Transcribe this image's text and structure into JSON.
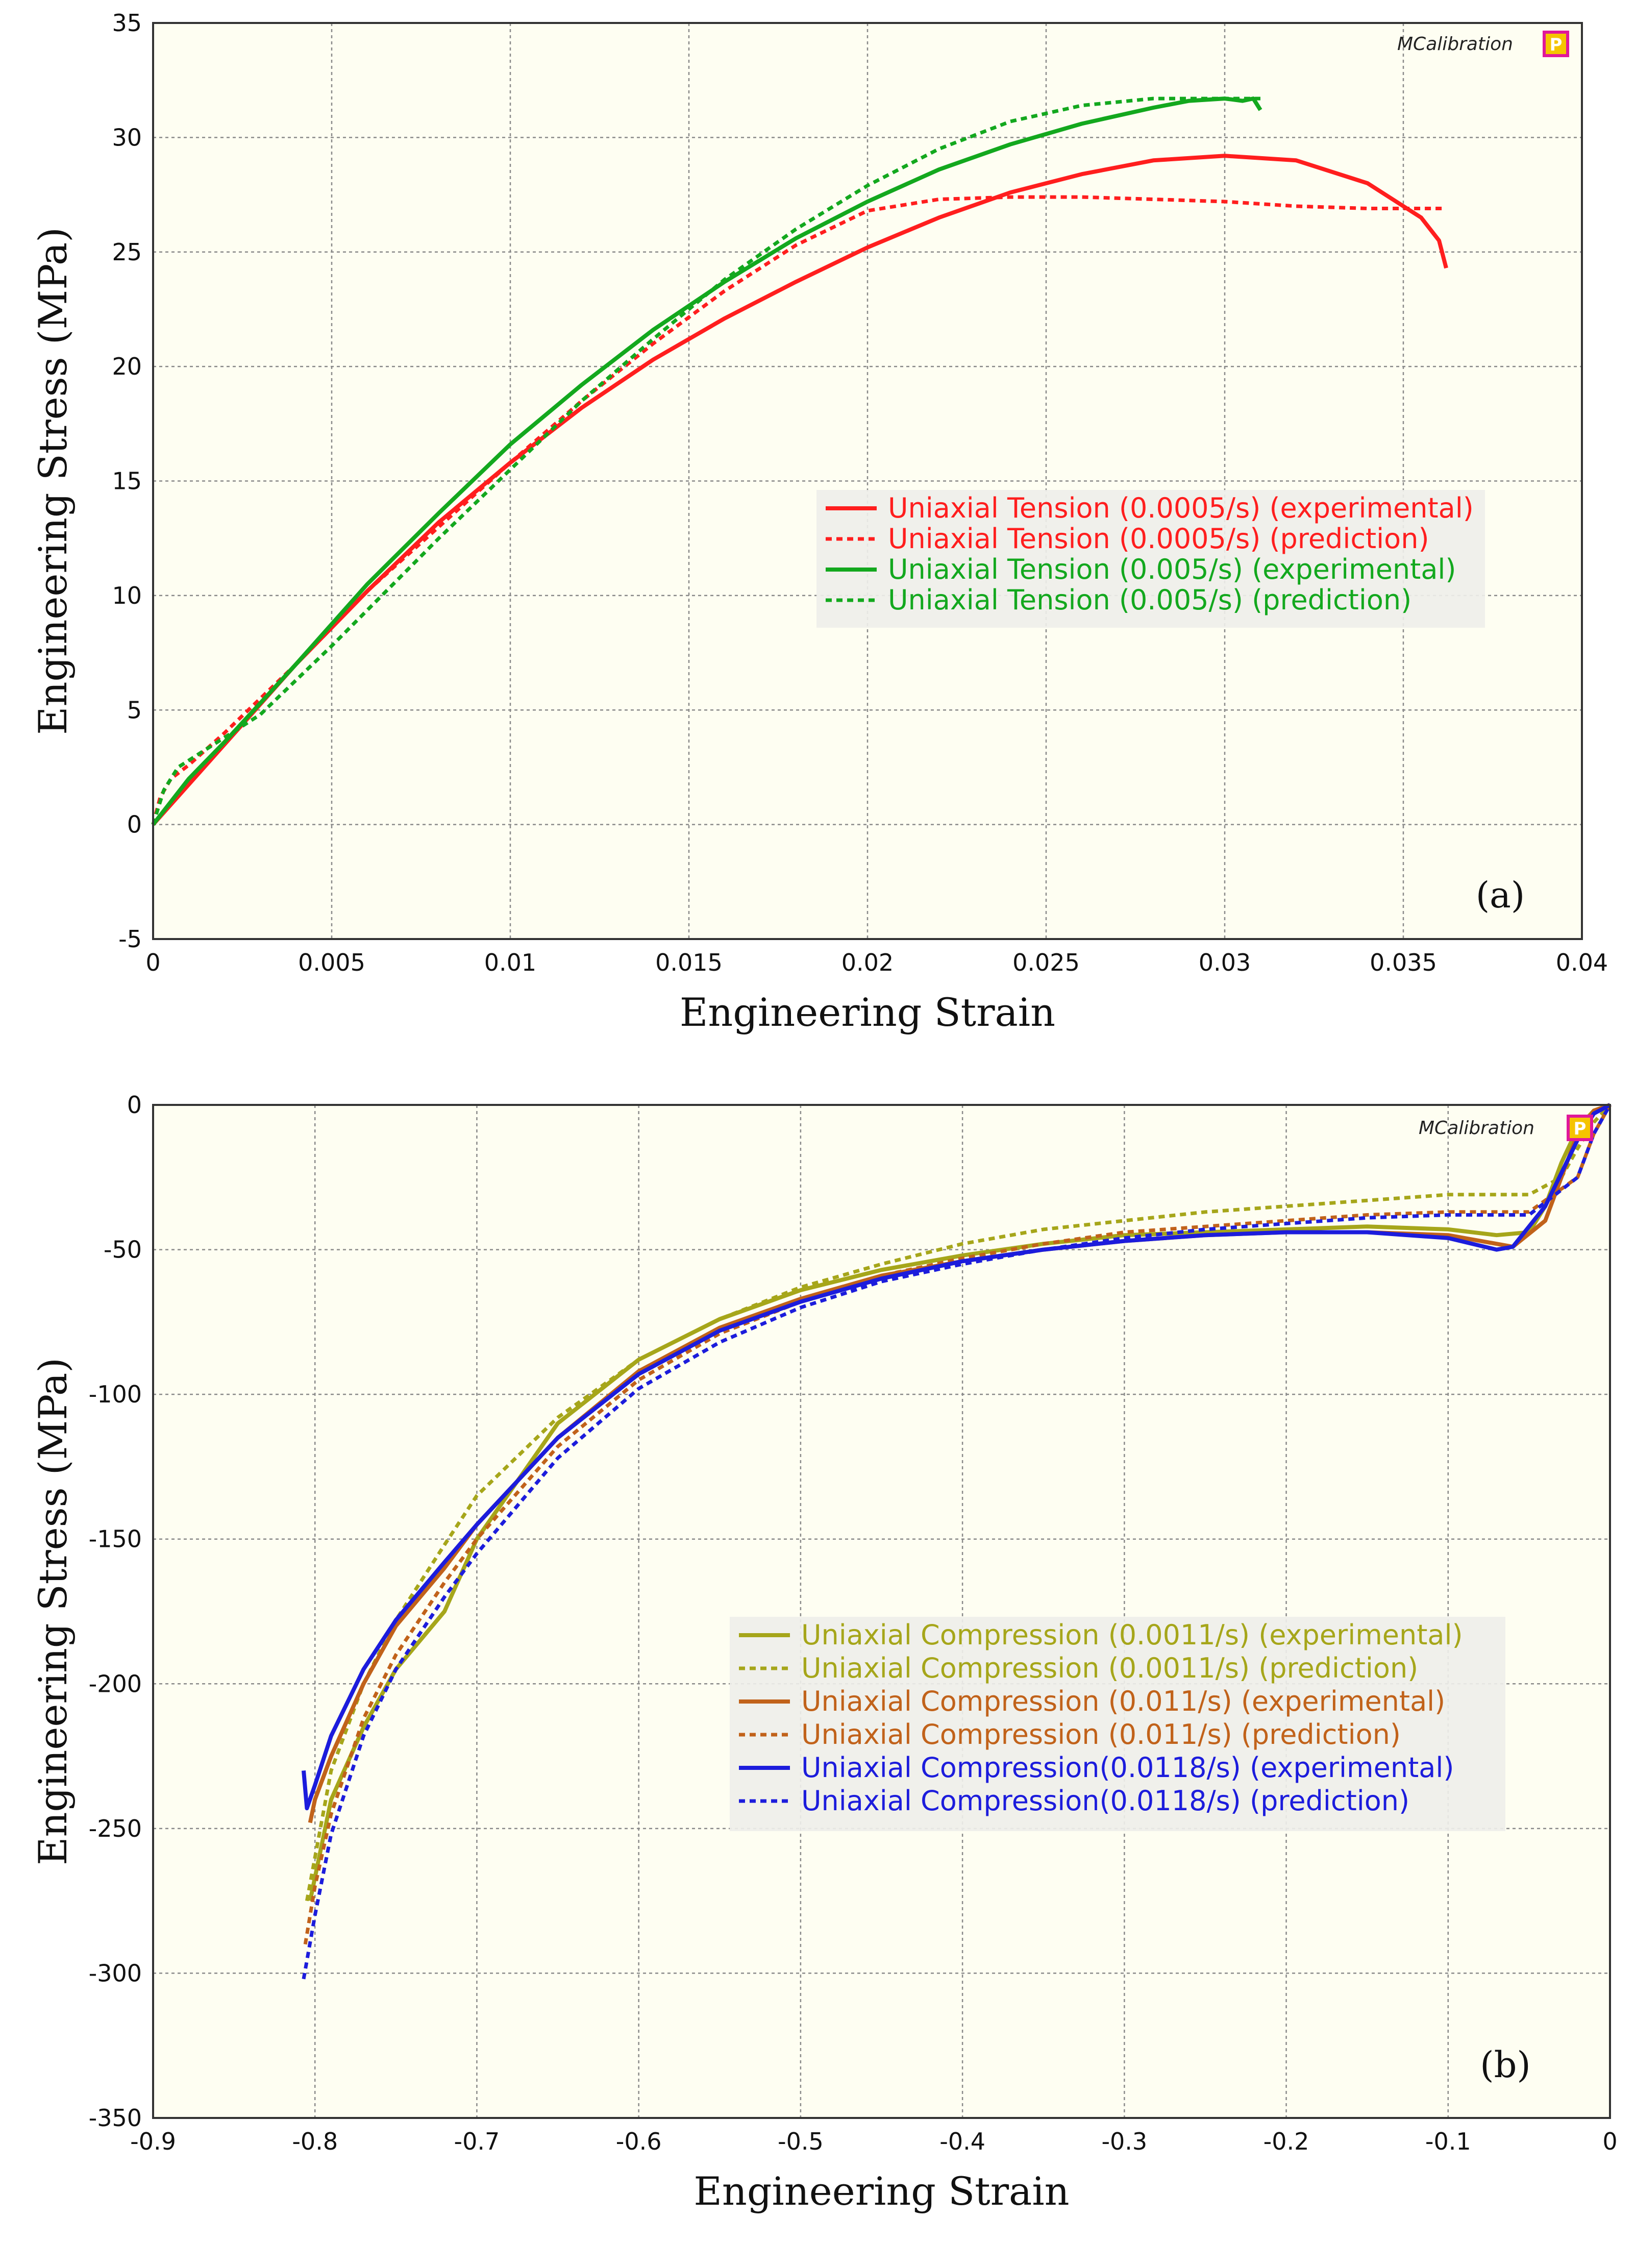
{
  "chart_data": [
    {
      "type": "line",
      "panel_label": "(a)",
      "xlabel": "Engineering Strain",
      "ylabel": "Engineering Stress (MPa)",
      "xlim": [
        0,
        0.04
      ],
      "ylim": [
        -5,
        35
      ],
      "xticks": [
        0,
        0.005,
        0.01,
        0.015,
        0.02,
        0.025,
        0.03,
        0.035,
        0.04
      ],
      "yticks": [
        -5,
        0,
        5,
        10,
        15,
        20,
        25,
        30,
        35
      ],
      "xtick_labels": [
        "0",
        "0.005",
        "0.01",
        "0.015",
        "0.02",
        "0.025",
        "0.03",
        "0.035",
        "0.04"
      ],
      "ytick_labels": [
        "-5",
        "0",
        "5",
        "10",
        "15",
        "20",
        "25",
        "30",
        "35"
      ],
      "grid": true,
      "legend_position": "center-right",
      "brand": {
        "text": "MCalibration",
        "badge": "P"
      },
      "series": [
        {
          "name": "Uniaxial Tension (0.0005/s) (experimental)",
          "color": "#ff1e1e",
          "style": "solid",
          "x": [
            0,
            0.002,
            0.004,
            0.006,
            0.008,
            0.01,
            0.012,
            0.014,
            0.016,
            0.018,
            0.02,
            0.022,
            0.024,
            0.026,
            0.028,
            0.03,
            0.032,
            0.034,
            0.0355,
            0.036,
            0.0362
          ],
          "y": [
            0,
            3.5,
            7,
            10.2,
            13.2,
            15.8,
            18.2,
            20.3,
            22.1,
            23.7,
            25.2,
            26.5,
            27.6,
            28.4,
            29.0,
            29.2,
            29.0,
            28.0,
            26.5,
            25.5,
            24.3
          ]
        },
        {
          "name": "Uniaxial Tension (0.0005/s) (prediction)",
          "color": "#ff1e1e",
          "style": "dashed",
          "x": [
            0,
            0.0002,
            0.0005,
            0.001,
            0.002,
            0.004,
            0.006,
            0.008,
            0.01,
            0.012,
            0.014,
            0.016,
            0.018,
            0.02,
            0.022,
            0.024,
            0.026,
            0.028,
            0.03,
            0.032,
            0.034,
            0.0362
          ],
          "y": [
            0,
            1.2,
            2.0,
            2.6,
            4.0,
            7.0,
            10.2,
            13.0,
            15.8,
            18.5,
            21.0,
            23.3,
            25.3,
            26.8,
            27.3,
            27.4,
            27.4,
            27.3,
            27.2,
            27.0,
            26.9,
            26.9
          ]
        },
        {
          "name": "Uniaxial Tension (0.005/s) (experimental)",
          "color": "#13a81e",
          "style": "solid",
          "x": [
            0,
            0.001,
            0.002,
            0.004,
            0.006,
            0.008,
            0.01,
            0.012,
            0.014,
            0.016,
            0.018,
            0.02,
            0.022,
            0.024,
            0.026,
            0.028,
            0.029,
            0.03,
            0.0305,
            0.0308,
            0.031
          ],
          "y": [
            0,
            2.0,
            3.6,
            7.0,
            10.5,
            13.6,
            16.6,
            19.2,
            21.6,
            23.7,
            25.6,
            27.2,
            28.6,
            29.7,
            30.6,
            31.3,
            31.6,
            31.7,
            31.6,
            31.7,
            31.2
          ]
        },
        {
          "name": "Uniaxial Tension (0.005/s) (prediction)",
          "color": "#13a81e",
          "style": "dashed",
          "x": [
            0,
            0.0003,
            0.0007,
            0.0015,
            0.003,
            0.005,
            0.008,
            0.01,
            0.012,
            0.014,
            0.016,
            0.018,
            0.02,
            0.022,
            0.024,
            0.026,
            0.028,
            0.03,
            0.031
          ],
          "y": [
            0,
            1.5,
            2.5,
            3.3,
            4.8,
            7.8,
            12.5,
            15.5,
            18.5,
            21.2,
            23.8,
            26.0,
            27.9,
            29.5,
            30.7,
            31.4,
            31.7,
            31.7,
            31.7
          ]
        }
      ]
    },
    {
      "type": "line",
      "panel_label": "(b)",
      "xlabel": "Engineering Strain",
      "ylabel": "Engineering Stress (MPa)",
      "xlim": [
        -0.9,
        0
      ],
      "ylim": [
        -350,
        0
      ],
      "xticks": [
        -0.9,
        -0.8,
        -0.7,
        -0.6,
        -0.5,
        -0.4,
        -0.3,
        -0.2,
        -0.1,
        0
      ],
      "yticks": [
        -350,
        -300,
        -250,
        -200,
        -150,
        -100,
        -50,
        0
      ],
      "xtick_labels": [
        "-0.9",
        "-0.8",
        "-0.7",
        "-0.6",
        "-0.5",
        "-0.4",
        "-0.3",
        "-0.2",
        "-0.1",
        "0"
      ],
      "ytick_labels": [
        "-350",
        "-300",
        "-250",
        "-200",
        "-150",
        "-100",
        "-50",
        "0"
      ],
      "grid": true,
      "legend_position": "lower-center",
      "brand": {
        "text": "MCalibration",
        "badge": "P"
      },
      "series": [
        {
          "name": "Uniaxial Compression (0.0011/s) (experimental)",
          "color": "#a6a61a",
          "style": "solid",
          "x": [
            -0.803,
            -0.79,
            -0.77,
            -0.75,
            -0.72,
            -0.7,
            -0.65,
            -0.6,
            -0.55,
            -0.5,
            -0.45,
            -0.4,
            -0.35,
            -0.3,
            -0.25,
            -0.2,
            -0.15,
            -0.1,
            -0.07,
            -0.05,
            -0.04,
            -0.03,
            -0.02,
            -0.01,
            0
          ],
          "y": [
            -275,
            -240,
            -215,
            -195,
            -175,
            -150,
            -110,
            -88,
            -74,
            -64,
            -57,
            -52,
            -48,
            -45,
            -44,
            -43,
            -42,
            -43,
            -45,
            -44,
            -35,
            -20,
            -8,
            -2,
            0
          ]
        },
        {
          "name": "Uniaxial Compression (0.0011/s) (prediction)",
          "color": "#a6a61a",
          "style": "dashed",
          "x": [
            -0.805,
            -0.79,
            -0.77,
            -0.75,
            -0.72,
            -0.7,
            -0.65,
            -0.6,
            -0.55,
            -0.5,
            -0.45,
            -0.4,
            -0.35,
            -0.3,
            -0.25,
            -0.2,
            -0.15,
            -0.1,
            -0.05,
            -0.03,
            -0.02,
            -0.01,
            0
          ],
          "y": [
            -275,
            -230,
            -200,
            -178,
            -152,
            -135,
            -108,
            -88,
            -74,
            -63,
            -55,
            -48,
            -43,
            -40,
            -37,
            -35,
            -33,
            -31,
            -31,
            -25,
            -15,
            -6,
            0
          ]
        },
        {
          "name": "Uniaxial Compression (0.011/s) (experimental)",
          "color": "#c1621a",
          "style": "solid",
          "x": [
            -0.803,
            -0.8,
            -0.79,
            -0.77,
            -0.75,
            -0.72,
            -0.7,
            -0.65,
            -0.6,
            -0.55,
            -0.5,
            -0.45,
            -0.4,
            -0.35,
            -0.3,
            -0.25,
            -0.2,
            -0.15,
            -0.1,
            -0.06,
            -0.04,
            -0.03,
            -0.02,
            -0.01,
            0
          ],
          "y": [
            -248,
            -240,
            -225,
            -200,
            -180,
            -160,
            -145,
            -115,
            -92,
            -77,
            -67,
            -59,
            -54,
            -50,
            -47,
            -45,
            -44,
            -44,
            -45,
            -49,
            -40,
            -25,
            -10,
            -2,
            0
          ]
        },
        {
          "name": "Uniaxial Compression (0.011/s) (prediction)",
          "color": "#c1621a",
          "style": "dashed",
          "x": [
            -0.806,
            -0.8,
            -0.79,
            -0.77,
            -0.75,
            -0.72,
            -0.7,
            -0.65,
            -0.6,
            -0.55,
            -0.5,
            -0.45,
            -0.4,
            -0.35,
            -0.3,
            -0.25,
            -0.2,
            -0.15,
            -0.1,
            -0.05,
            -0.02,
            -0.01,
            0
          ],
          "y": [
            -290,
            -270,
            -245,
            -212,
            -190,
            -165,
            -150,
            -118,
            -95,
            -79,
            -68,
            -59,
            -53,
            -48,
            -44,
            -42,
            -40,
            -38,
            -37,
            -37,
            -25,
            -10,
            0
          ]
        },
        {
          "name": "Uniaxial Compression(0.0118/s) (experimental)",
          "color": "#1c1cdc",
          "style": "solid",
          "x": [
            -0.807,
            -0.805,
            -0.8,
            -0.79,
            -0.77,
            -0.75,
            -0.72,
            -0.7,
            -0.65,
            -0.6,
            -0.55,
            -0.5,
            -0.45,
            -0.4,
            -0.35,
            -0.3,
            -0.25,
            -0.2,
            -0.15,
            -0.1,
            -0.07,
            -0.06,
            -0.04,
            -0.02,
            -0.01,
            0
          ],
          "y": [
            -230,
            -243,
            -235,
            -218,
            -195,
            -178,
            -158,
            -145,
            -115,
            -93,
            -78,
            -68,
            -60,
            -54,
            -50,
            -47,
            -45,
            -44,
            -44,
            -46,
            -50,
            -49,
            -35,
            -12,
            -3,
            0
          ]
        },
        {
          "name": "Uniaxial Compression(0.0118/s) (prediction)",
          "color": "#1c1cdc",
          "style": "dashed",
          "x": [
            -0.807,
            -0.8,
            -0.79,
            -0.77,
            -0.75,
            -0.72,
            -0.7,
            -0.65,
            -0.6,
            -0.55,
            -0.5,
            -0.45,
            -0.4,
            -0.35,
            -0.3,
            -0.25,
            -0.2,
            -0.15,
            -0.1,
            -0.05,
            -0.02,
            -0.01,
            0
          ],
          "y": [
            -302,
            -280,
            -252,
            -218,
            -195,
            -170,
            -155,
            -122,
            -98,
            -82,
            -70,
            -61,
            -55,
            -50,
            -46,
            -43,
            -41,
            -39,
            -38,
            -38,
            -25,
            -10,
            0
          ]
        }
      ]
    }
  ]
}
